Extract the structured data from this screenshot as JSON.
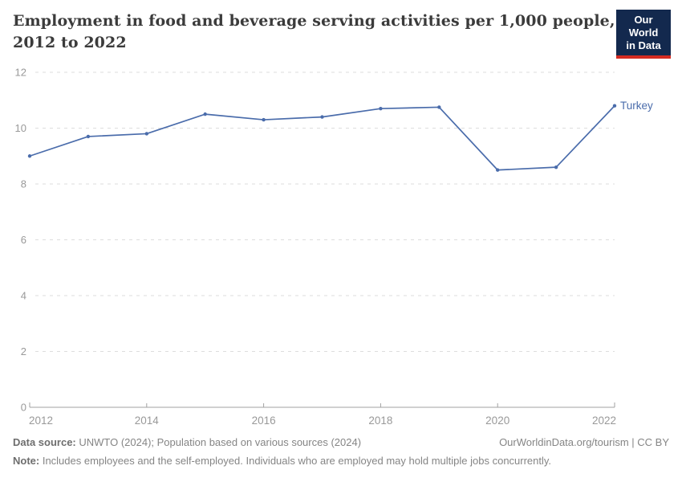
{
  "header": {
    "title_line1": "Employment in food and beverage serving activities per 1,000 people,",
    "title_line2": "2012 to 2022",
    "logo": {
      "line1": "Our World",
      "line2": "in Data"
    }
  },
  "chart_data": {
    "type": "line",
    "title": "Employment in food and beverage serving activities per 1,000 people, 2012 to 2022",
    "x": [
      2012,
      2013,
      2014,
      2015,
      2016,
      2017,
      2018,
      2019,
      2020,
      2021,
      2022
    ],
    "series": [
      {
        "name": "Turkey",
        "color": "#4a6cab",
        "values": [
          9.0,
          9.7,
          9.8,
          10.5,
          10.3,
          10.4,
          10.7,
          10.75,
          8.5,
          8.6,
          10.8
        ]
      }
    ],
    "xlabel": "",
    "ylabel": "",
    "ylim": [
      0,
      12
    ],
    "yticks": [
      0,
      2,
      4,
      6,
      8,
      10,
      12
    ],
    "xticks": [
      2012,
      2014,
      2016,
      2018,
      2020,
      2022
    ],
    "grid": "horizontal-dashed",
    "legend_position": "end-of-line-label"
  },
  "footer": {
    "datasource_label": "Data source:",
    "datasource_text": " UNWTO (2024); Population based on various sources (2024)",
    "link_text": "OurWorldinData.org/tourism | CC BY",
    "note_label": "Note:",
    "note_text": " Includes employees and the self-employed. Individuals who are employed may hold multiple jobs concurrently."
  },
  "colors": {
    "line": "#4a6cab",
    "gridline": "#dddddd",
    "axis": "#a1a1a1",
    "tick_label": "#999999",
    "title": "#3b3b3b",
    "footer_text": "#858585",
    "logo_bg": "#13294e",
    "logo_stripe": "#d42b21"
  }
}
